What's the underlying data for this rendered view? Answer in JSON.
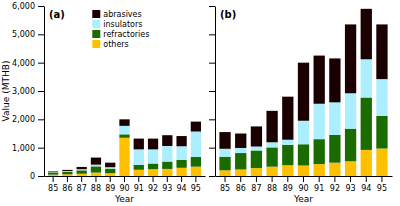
{
  "chart_data": [
    {
      "type": "bar",
      "stacked": true,
      "title": "(a)",
      "xlabel": "Year",
      "ylabel": "Value (MTHB)",
      "categories": [
        "85",
        "86",
        "87",
        "88",
        "89",
        "90",
        "91",
        "92",
        "93",
        "94",
        "95"
      ],
      "series": [
        {
          "name": "others",
          "color": "#ffc000",
          "values": [
            50,
            60,
            80,
            120,
            100,
            1350,
            220,
            240,
            250,
            290,
            330
          ]
        },
        {
          "name": "refractories",
          "color": "#1a6b00",
          "values": [
            70,
            90,
            120,
            220,
            160,
            120,
            170,
            200,
            260,
            280,
            340
          ]
        },
        {
          "name": "insulators",
          "color": "#aaeeff",
          "values": [
            15,
            25,
            40,
            60,
            50,
            300,
            550,
            500,
            550,
            480,
            900
          ]
        },
        {
          "name": "abrasives",
          "color": "#1a0000",
          "values": [
            25,
            40,
            80,
            250,
            160,
            230,
            380,
            380,
            380,
            360,
            350
          ]
        }
      ],
      "ylim": [
        0,
        6000
      ],
      "yticks": [
        0,
        {
          "value": 1000,
          "label": "1,000"
        },
        {
          "value": 2000,
          "label": "2,000"
        },
        {
          "value": 3000,
          "label": "3,000"
        },
        {
          "value": 4000,
          "label": "4,000"
        },
        {
          "value": 5000,
          "label": "5,000"
        },
        {
          "value": 6000,
          "label": "6,000"
        }
      ],
      "legend": "upper left"
    },
    {
      "type": "bar",
      "stacked": true,
      "title": "(b)",
      "xlabel": "Year",
      "categories": [
        "85",
        "86",
        "87",
        "88",
        "89",
        "90",
        "91",
        "92",
        "93",
        "94",
        "95"
      ],
      "series": [
        {
          "color": "#ffc000",
          "values": [
            200,
            230,
            280,
            330,
            380,
            370,
            420,
            470,
            520,
            920,
            970
          ]
        },
        {
          "color": "#1a6b00",
          "values": [
            480,
            580,
            620,
            680,
            720,
            750,
            880,
            980,
            1150,
            1850,
            1150
          ]
        },
        {
          "color": "#aaeeff",
          "values": [
            280,
            180,
            140,
            180,
            180,
            830,
            1250,
            1150,
            1250,
            1350,
            1300
          ]
        },
        {
          "color": "#1a0000",
          "values": [
            590,
            510,
            710,
            1110,
            1520,
            2050,
            1700,
            1550,
            2430,
            1780,
            1930
          ]
        }
      ],
      "ylim": [
        0,
        6000
      ],
      "yticks": [
        0,
        1000,
        2000,
        3000,
        4000,
        5000,
        6000
      ],
      "tick_labels": "x"
    }
  ]
}
